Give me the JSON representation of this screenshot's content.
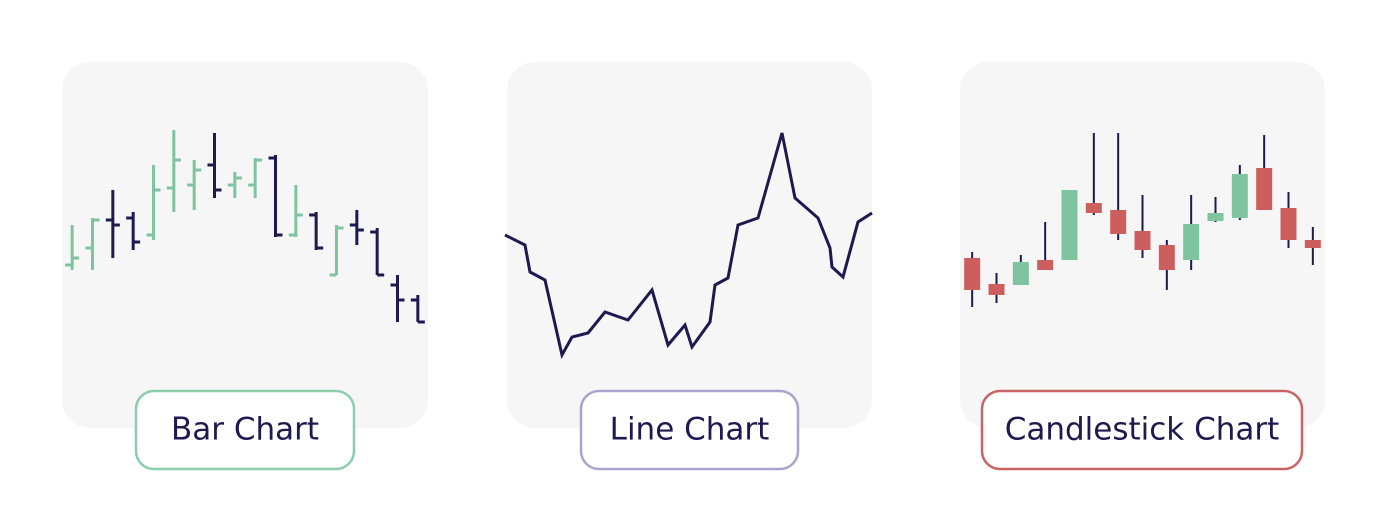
{
  "chart_data": [
    {
      "type": "ohlc",
      "label": "Bar Chart",
      "button_color": "#8ccdab",
      "up_color": "#7fc4a0",
      "down_color": "#1c1a4f",
      "categories": [
        null,
        null,
        null,
        null,
        null,
        null,
        null,
        null,
        null,
        null,
        null,
        null,
        null,
        null,
        null,
        null,
        null,
        null
      ],
      "open": [
        135,
        152,
        180,
        182,
        165,
        212,
        215,
        235,
        215,
        215,
        242,
        165,
        185,
        125,
        175,
        168,
        115,
        100
      ],
      "high": [
        175,
        182,
        210,
        188,
        235,
        270,
        240,
        267,
        228,
        242,
        245,
        215,
        188,
        175,
        190,
        172,
        125,
        105
      ],
      "low": [
        130,
        130,
        142,
        150,
        160,
        188,
        190,
        202,
        202,
        202,
        163,
        163,
        150,
        125,
        155,
        125,
        78,
        78
      ],
      "close": [
        142,
        180,
        175,
        158,
        210,
        240,
        230,
        210,
        222,
        240,
        165,
        185,
        152,
        172,
        170,
        125,
        100,
        78
      ],
      "ylim": [
        0,
        300
      ]
    },
    {
      "type": "line",
      "label": "Line Chart",
      "button_color": "#aaa3cb",
      "color": "#1c1a4f",
      "x": [
        0,
        20,
        25,
        40,
        57,
        67,
        83,
        100,
        123,
        147,
        163,
        180,
        187,
        205,
        210,
        223,
        233,
        253,
        277,
        290,
        313,
        325,
        327,
        338,
        353,
        367
      ],
      "values": [
        165,
        155,
        128,
        120,
        45,
        63,
        67,
        88,
        80,
        110,
        55,
        75,
        53,
        78,
        115,
        122,
        175,
        182,
        267,
        202,
        182,
        152,
        133,
        123,
        178,
        187
      ],
      "xlim": [
        0,
        367
      ],
      "ylim": [
        0,
        300
      ]
    },
    {
      "type": "candlestick",
      "label": "Candlestick Chart",
      "button_color": "#c96464",
      "up_color": "#7fc4a0",
      "down_color": "#cd5e5e",
      "categories": [
        null,
        null,
        null,
        null,
        null,
        null,
        null,
        null,
        null,
        null,
        null,
        null,
        null,
        null,
        null
      ],
      "open": [
        142,
        116,
        115,
        140,
        140,
        197,
        190,
        169,
        155,
        140,
        179,
        182,
        232,
        192,
        160
      ],
      "high": [
        148,
        127,
        145,
        178,
        210,
        267,
        267,
        205,
        160,
        205,
        203,
        235,
        265,
        208,
        173
      ],
      "low": [
        93,
        97,
        115,
        130,
        140,
        185,
        160,
        142,
        110,
        130,
        178,
        180,
        190,
        152,
        135
      ],
      "close": [
        110,
        105,
        138,
        130,
        210,
        187,
        166,
        150,
        130,
        176,
        187,
        226,
        190,
        160,
        152
      ],
      "ylim": [
        0,
        300
      ]
    }
  ]
}
